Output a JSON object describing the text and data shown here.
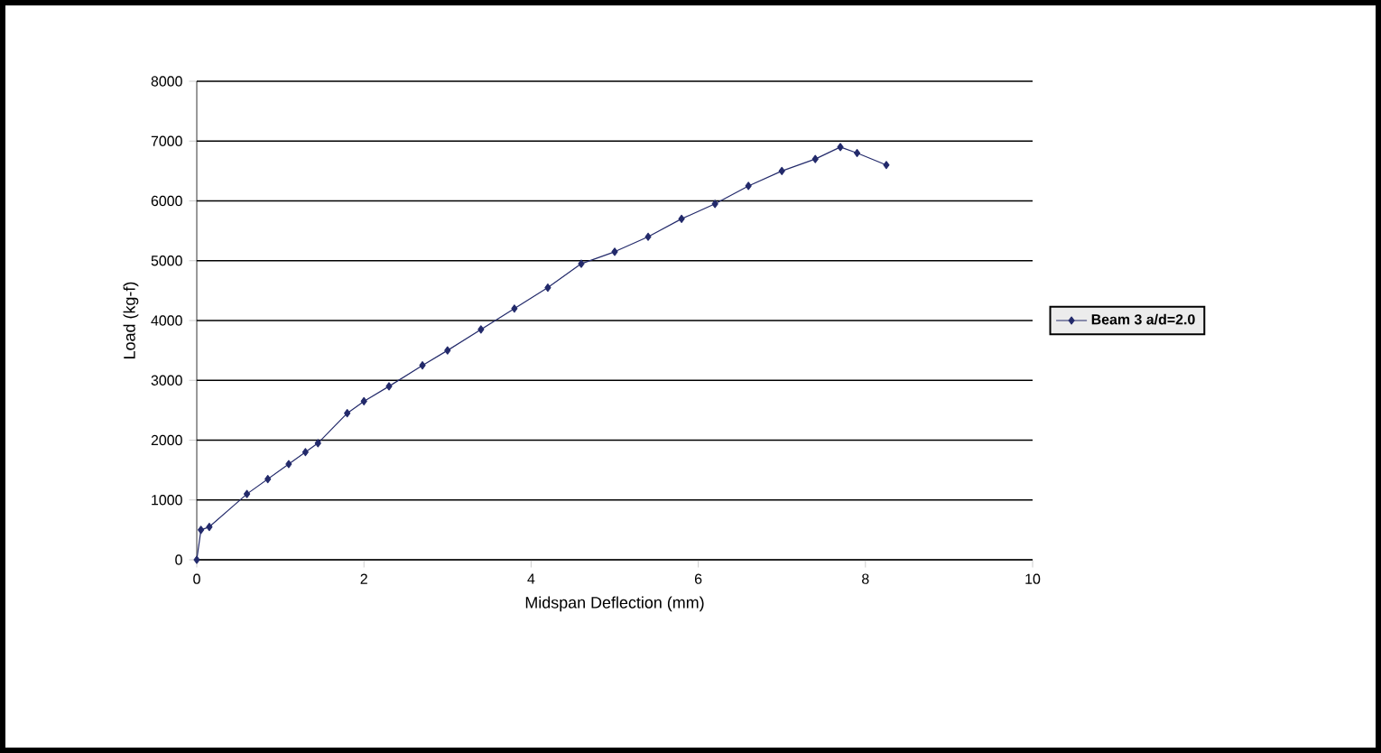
{
  "chart_data": {
    "type": "line",
    "xlabel": "Midspan Deflection (mm)",
    "ylabel": "Load (kg-f)",
    "series": [
      {
        "name": "Beam 3 a/d=2.0",
        "color": "#232a6b",
        "x": [
          0,
          0.05,
          0.15,
          0.6,
          0.85,
          1.1,
          1.3,
          1.45,
          1.8,
          2.0,
          2.3,
          2.7,
          3.0,
          3.4,
          3.8,
          4.2,
          4.6,
          5.0,
          5.4,
          5.8,
          6.2,
          6.6,
          7.0,
          7.4,
          7.7,
          7.9,
          8.25
        ],
        "values": [
          0,
          500,
          550,
          1100,
          1350,
          1600,
          1800,
          1950,
          2450,
          2650,
          2900,
          3250,
          3500,
          3850,
          4200,
          4550,
          4950,
          5150,
          5400,
          5700,
          5950,
          6250,
          6500,
          6700,
          6900,
          6800,
          6600
        ]
      }
    ],
    "xlim": [
      0,
      10
    ],
    "ylim": [
      0,
      8000
    ],
    "xticks": [
      0,
      2,
      4,
      6,
      8,
      10
    ],
    "yticks": [
      0,
      1000,
      2000,
      3000,
      4000,
      5000,
      6000,
      7000,
      8000
    ],
    "grid": "y",
    "legend": "right",
    "marker": "diamond",
    "line_style": "solid"
  }
}
